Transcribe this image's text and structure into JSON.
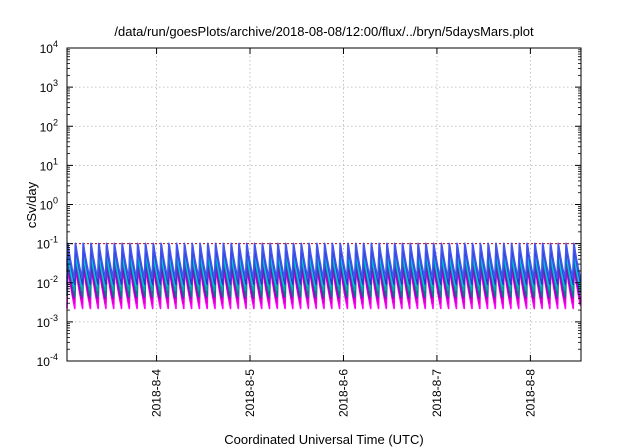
{
  "chart_data": {
    "type": "line",
    "title": "/data/run/goesPlots/archive/2018-08-08/12:00/flux/../bryn/5daysMars.plot",
    "xlabel": "Coordinated Universal Time (UTC)",
    "ylabel": "cSv/day",
    "y_scale": "log",
    "ylim": [
      0.0001,
      10000
    ],
    "y_ticks": [
      {
        "base": "10",
        "exp": "4"
      },
      {
        "base": "10",
        "exp": "3"
      },
      {
        "base": "10",
        "exp": "2"
      },
      {
        "base": "10",
        "exp": "1"
      },
      {
        "base": "10",
        "exp": "0"
      },
      {
        "base": "10",
        "exp": "-1"
      },
      {
        "base": "10",
        "exp": "-2"
      },
      {
        "base": "10",
        "exp": "-3"
      },
      {
        "base": "10",
        "exp": "-4"
      }
    ],
    "xlim": [
      "2018-08-03T01:00",
      "2018-08-08T13:00"
    ],
    "x_ticks": [
      "2018-8-4",
      "2018-8-5",
      "2018-8-6",
      "2018-8-7",
      "2018-8-8"
    ],
    "grid": true,
    "reference_line": {
      "value": 0.1,
      "color": "#cc0000",
      "style": "dotted"
    },
    "oscillation": {
      "periods_per_day": 12,
      "low": 0.0025,
      "high": 0.12
    },
    "series": [
      {
        "color": "#ff00ff",
        "peak": 0.028,
        "trough": 0.0022
      },
      {
        "color": "#dd00cc",
        "peak": 0.035,
        "trough": 0.0028
      },
      {
        "color": "#9900cc",
        "peak": 0.045,
        "trough": 0.0035
      },
      {
        "color": "#008080",
        "peak": 0.055,
        "trough": 0.0045
      },
      {
        "color": "#00aaaa",
        "peak": 0.06,
        "trough": 0.006
      },
      {
        "color": "#00c8dc",
        "peak": 0.075,
        "trough": 0.0075
      },
      {
        "color": "#3333cc",
        "peak": 0.095,
        "trough": 0.009
      },
      {
        "color": "#4455ee",
        "peak": 0.12,
        "trough": 0.012
      }
    ]
  }
}
